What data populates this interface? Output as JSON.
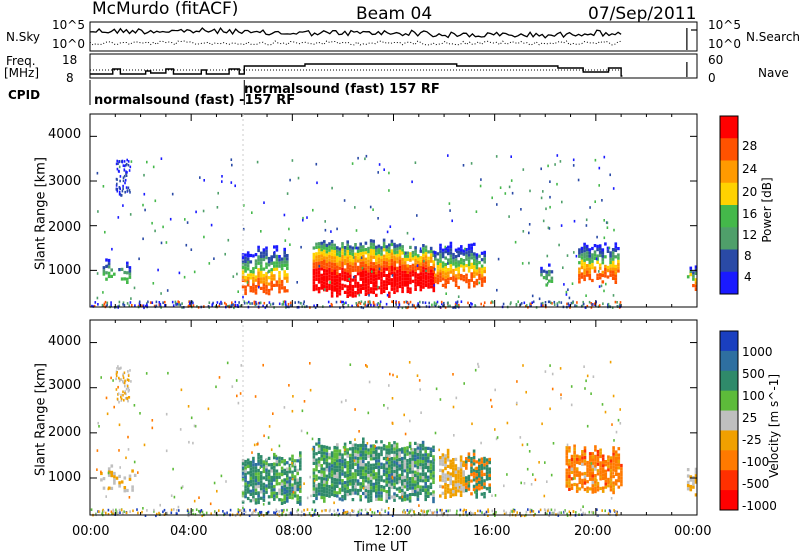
{
  "header": {
    "station": "McMurdo (fitACF)",
    "beam": "Beam 04",
    "date": "07/Sep/2011"
  },
  "left_labels": {
    "nsky": "N.Sky",
    "freq": "Freq.",
    "freq_unit": "[MHz]",
    "cpid": "CPID"
  },
  "right_labels": {
    "nsearch": "N.Search",
    "nave": "Nave"
  },
  "noise_axis": {
    "left_ticks": [
      "10^5",
      "10^0"
    ],
    "right_ticks": [
      "10^5",
      "10^0"
    ]
  },
  "freq_axis": {
    "left_ticks": [
      "18",
      "8"
    ],
    "right_ticks": [
      "60",
      "0"
    ]
  },
  "cpid_labels": {
    "a": "normalsound (fast) -157 RF",
    "b": "normalsound (fast) 157 RF"
  },
  "colors": {
    "power_scale": [
      "#1a1aff",
      "#2a4aa6",
      "#4f9f6a",
      "#44b84a",
      "#ffd200",
      "#ff9a00",
      "#ff5200",
      "#ff0000"
    ],
    "velocity_scale": [
      "#1a3fbf",
      "#2e6fa0",
      "#2f8a6a",
      "#5dbb3a",
      "#bfbfbf",
      "#f0a000",
      "#ff7a00",
      "#ff3000",
      "#ff0000"
    ]
  },
  "chart_data": [
    {
      "type": "heatmap",
      "title": "Power",
      "ylabel": "Slant Range [km]",
      "xlabel": "",
      "y_ticks": [
        "4000",
        "3000",
        "2000",
        "1000"
      ],
      "ylim": [
        180,
        4500
      ],
      "colorbar": {
        "label": "Power [dB]",
        "ticks": [
          "28",
          "24",
          "20",
          "16",
          "12",
          "8",
          "4"
        ]
      },
      "regions": [
        {
          "t": [
            8.8,
            12.0
          ],
          "r": [
            600,
            1750
          ],
          "level": "high"
        },
        {
          "t": [
            12.0,
            13.6
          ],
          "r": [
            600,
            1650
          ],
          "level": "high"
        },
        {
          "t": [
            13.6,
            15.6
          ],
          "r": [
            750,
            1600
          ],
          "level": "mid"
        },
        {
          "t": [
            6.0,
            7.8
          ],
          "r": [
            600,
            1600
          ],
          "level": "mid"
        },
        {
          "t": [
            19.3,
            20.9
          ],
          "r": [
            800,
            1700
          ],
          "level": "mid"
        }
      ]
    },
    {
      "type": "heatmap",
      "title": "Velocity",
      "ylabel": "Slant Range [km]",
      "xlabel": "Time UT",
      "x_ticks": [
        "00:00",
        "04:00",
        "08:00",
        "12:00",
        "16:00",
        "20:00",
        "00:00"
      ],
      "y_ticks": [
        "4000",
        "3000",
        "2000",
        "1000"
      ],
      "ylim": [
        180,
        4500
      ],
      "colorbar": {
        "label": "Velocity [m s^-1]",
        "ticks": [
          "1000",
          "500",
          "100",
          "25",
          "-25",
          "-100",
          "-500",
          "-1000"
        ]
      },
      "regions": [
        {
          "t": [
            6.0,
            8.3
          ],
          "r": [
            550,
            1500
          ],
          "velocity": "positive"
        },
        {
          "t": [
            8.8,
            13.6
          ],
          "r": [
            600,
            1800
          ],
          "velocity": "positive"
        },
        {
          "t": [
            13.8,
            15.8
          ],
          "r": [
            700,
            1600
          ],
          "velocity": "mixed"
        },
        {
          "t": [
            18.8,
            21.0
          ],
          "r": [
            800,
            1700
          ],
          "velocity": "negative"
        }
      ]
    }
  ]
}
